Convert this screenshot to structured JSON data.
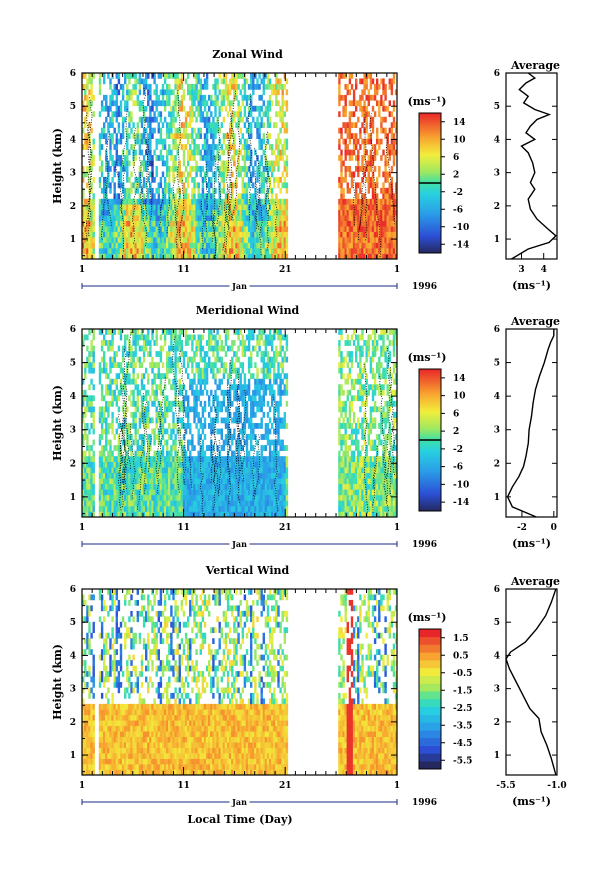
{
  "figure": {
    "xlabel": "Local Time (Day)",
    "month_label": "Jan",
    "year_label": "1996"
  },
  "chart_data": [
    {
      "type": "heatmap",
      "title": "Zonal Wind",
      "ylabel": "Height (km)",
      "xlim": [
        1,
        32
      ],
      "ylim": [
        0.4,
        6
      ],
      "x_ticks": [
        "1",
        "11",
        "21",
        "1"
      ],
      "y_ticks": [
        "1",
        "2",
        "3",
        "4",
        "5",
        "6"
      ],
      "data_gaps": [
        [
          2.2,
          2.6
        ],
        [
          21.2,
          26.2
        ]
      ],
      "colorbar": {
        "label": "(ms⁻¹)",
        "range": [
          -16,
          16
        ],
        "tick_labels": [
          "14",
          "10",
          "6",
          "2",
          "-2",
          "-6",
          "-10",
          "-14"
        ],
        "zero_line_value": 0
      },
      "average_profile": {
        "title": "Average",
        "xlabel": "(ms⁻¹)",
        "xlim": [
          2.3,
          4.6
        ],
        "x_ticks": [
          "3",
          "4"
        ],
        "y_ticks": [
          "1",
          "2",
          "3",
          "4",
          "5",
          "6"
        ],
        "points": [
          [
            2.55,
            0.4
          ],
          [
            3.3,
            0.7
          ],
          [
            4.25,
            0.9
          ],
          [
            4.55,
            1.1
          ],
          [
            4.2,
            1.3
          ],
          [
            3.7,
            1.6
          ],
          [
            3.4,
            1.9
          ],
          [
            3.3,
            2.2
          ],
          [
            3.6,
            2.5
          ],
          [
            3.4,
            2.7
          ],
          [
            3.6,
            3.0
          ],
          [
            3.5,
            3.3
          ],
          [
            3.3,
            3.6
          ],
          [
            3.0,
            3.8
          ],
          [
            3.6,
            4.0
          ],
          [
            3.2,
            4.2
          ],
          [
            3.4,
            4.4
          ],
          [
            3.7,
            4.6
          ],
          [
            4.25,
            4.75
          ],
          [
            3.6,
            4.9
          ],
          [
            3.1,
            5.1
          ],
          [
            3.3,
            5.3
          ],
          [
            2.9,
            5.5
          ],
          [
            3.2,
            5.7
          ],
          [
            3.6,
            5.85
          ],
          [
            3.3,
            6.0
          ]
        ]
      }
    },
    {
      "type": "heatmap",
      "title": "Meridional Wind",
      "ylabel": "Height (km)",
      "xlim": [
        1,
        32
      ],
      "ylim": [
        0.4,
        6
      ],
      "x_ticks": [
        "1",
        "11",
        "21",
        "1"
      ],
      "y_ticks": [
        "1",
        "2",
        "3",
        "4",
        "5",
        "6"
      ],
      "data_gaps": [
        [
          2.2,
          2.6
        ],
        [
          21.2,
          26.2
        ]
      ],
      "colorbar": {
        "label": "(ms⁻¹)",
        "range": [
          -16,
          16
        ],
        "tick_labels": [
          "14",
          "10",
          "6",
          "2",
          "-2",
          "-6",
          "-10",
          "-14"
        ],
        "zero_line_value": 0
      },
      "average_profile": {
        "title": "Average",
        "xlabel": "(ms⁻¹)",
        "xlim": [
          -3.0,
          0.2
        ],
        "x_ticks": [
          "-2",
          "0"
        ],
        "y_ticks": [
          "1",
          "2",
          "3",
          "4",
          "5",
          "6"
        ],
        "points": [
          [
            -1.1,
            0.4
          ],
          [
            -2.6,
            0.7
          ],
          [
            -2.9,
            1.0
          ],
          [
            -2.6,
            1.3
          ],
          [
            -2.2,
            1.6
          ],
          [
            -1.9,
            1.9
          ],
          [
            -1.75,
            2.2
          ],
          [
            -1.6,
            2.6
          ],
          [
            -1.55,
            3.0
          ],
          [
            -1.4,
            3.4
          ],
          [
            -1.3,
            3.8
          ],
          [
            -1.15,
            4.2
          ],
          [
            -0.9,
            4.6
          ],
          [
            -0.6,
            5.0
          ],
          [
            -0.35,
            5.4
          ],
          [
            -0.2,
            5.6
          ],
          [
            0.0,
            5.8
          ],
          [
            0.0,
            6.0
          ]
        ]
      }
    },
    {
      "type": "heatmap",
      "title": "Vertical Wind",
      "ylabel": "Height (km)",
      "xlim": [
        1,
        32
      ],
      "ylim": [
        0.4,
        6
      ],
      "x_ticks": [
        "1",
        "11",
        "21",
        "1"
      ],
      "y_ticks": [
        "1",
        "2",
        "3",
        "4",
        "5",
        "6"
      ],
      "data_gaps": [
        [
          2.2,
          2.6
        ],
        [
          21.2,
          26.2
        ]
      ],
      "colorbar": {
        "label": "(ms⁻¹)",
        "range": [
          -6.5,
          2.5
        ],
        "tick_labels": [
          "1.5",
          "0.5",
          "-0.5",
          "-1.5",
          "-2.5",
          "-3.5",
          "-4.5",
          "-5.5"
        ]
      },
      "average_profile": {
        "title": "Average",
        "xlabel": "(ms⁻¹)",
        "xlim": [
          -5.5,
          -1.0
        ],
        "x_ticks": [
          "-5.5",
          "-1.0"
        ],
        "y_ticks": [
          "1",
          "2",
          "3",
          "4",
          "5",
          "6"
        ],
        "points": [
          [
            -1.1,
            0.4
          ],
          [
            -1.5,
            0.9
          ],
          [
            -1.9,
            1.3
          ],
          [
            -2.4,
            1.7
          ],
          [
            -2.6,
            2.1
          ],
          [
            -3.4,
            2.4
          ],
          [
            -4.0,
            2.8
          ],
          [
            -4.6,
            3.2
          ],
          [
            -5.2,
            3.6
          ],
          [
            -5.5,
            3.9
          ],
          [
            -5.1,
            4.1
          ],
          [
            -3.8,
            4.4
          ],
          [
            -2.8,
            4.8
          ],
          [
            -2.0,
            5.2
          ],
          [
            -1.5,
            5.6
          ],
          [
            -1.1,
            6.0
          ]
        ]
      }
    }
  ]
}
